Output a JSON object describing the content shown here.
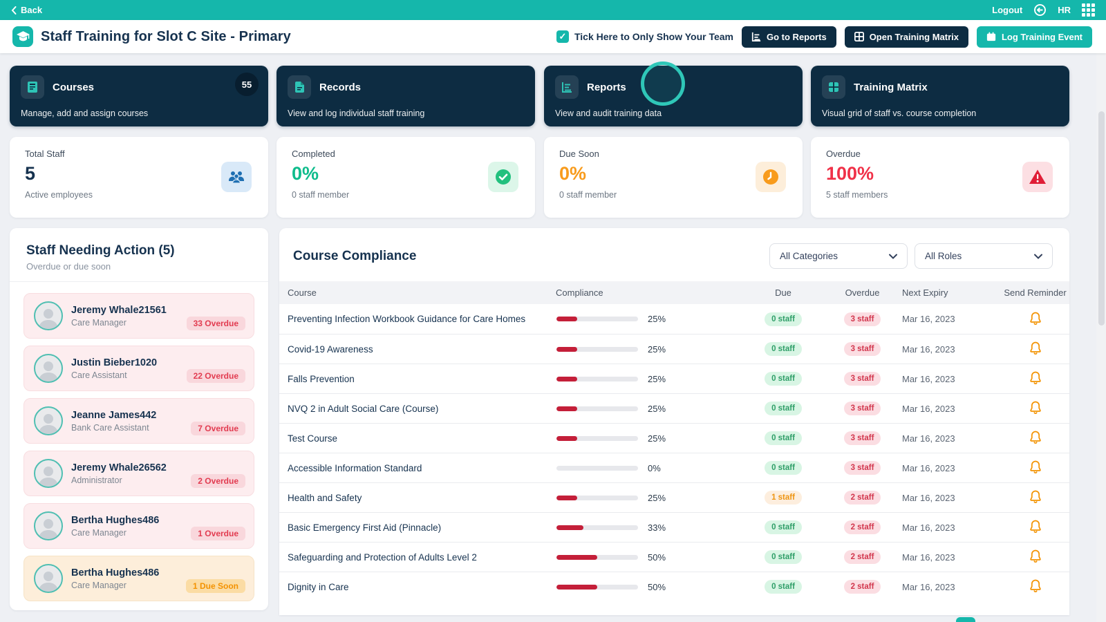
{
  "topbar": {
    "back_label": "Back",
    "logout_label": "Logout",
    "org_label": "HR"
  },
  "header": {
    "title": "Staff Training for Slot C Site - Primary",
    "team_filter_label": "Tick Here to Only Show Your Team",
    "checkbox_checked": "✓",
    "buttons": {
      "reports": "Go to Reports",
      "matrix": "Open Training Matrix",
      "log_event": "Log Training Event"
    }
  },
  "nav_cards": [
    {
      "title": "Courses",
      "description": "Manage, add and assign courses",
      "badge": "55",
      "icon": "book-icon"
    },
    {
      "title": "Records",
      "description": "View and log individual staff training",
      "icon": "file-icon"
    },
    {
      "title": "Reports",
      "description": "View and audit training data",
      "icon": "bar-chart-icon"
    },
    {
      "title": "Training Matrix",
      "description": "Visual grid of staff vs. course completion",
      "icon": "grid-icon"
    }
  ],
  "stat_cards": [
    {
      "label": "Total Staff",
      "value": "5",
      "subtext": "Active employees",
      "accent": "#16324f",
      "icon": "people-icon",
      "icon_bg": "#d9e9f8"
    },
    {
      "label": "Completed",
      "value": "0%",
      "subtext": "0 staff member",
      "accent": "#0ebc8c",
      "icon": "check-circle-icon",
      "icon_bg": "#dcf6e9"
    },
    {
      "label": "Due Soon",
      "value": "0%",
      "subtext": "0 staff member",
      "accent": "#f89b1c",
      "icon": "clock-icon",
      "icon_bg": "#fdeeda"
    },
    {
      "label": "Overdue",
      "value": "100%",
      "subtext": "5 staff members",
      "accent": "#f03148",
      "icon": "alert-triangle-icon",
      "icon_bg": "#fcdfe3"
    }
  ],
  "staff_panel": {
    "title": "Staff Needing Action (5)",
    "subtitle": "Overdue or due soon",
    "items": [
      {
        "name": "Jeremy Whale21561",
        "role": "Care Manager",
        "badge": "33 Overdue",
        "status": "overdue"
      },
      {
        "name": "Justin Bieber1020",
        "role": "Care Assistant",
        "badge": "22 Overdue",
        "status": "overdue"
      },
      {
        "name": "Jeanne James442",
        "role": "Bank Care Assistant",
        "badge": "7 Overdue",
        "status": "overdue"
      },
      {
        "name": "Jeremy Whale26562",
        "role": "Administrator",
        "badge": "2 Overdue",
        "status": "overdue"
      },
      {
        "name": "Bertha Hughes486",
        "role": "Care Manager",
        "badge": "1 Overdue",
        "status": "overdue"
      },
      {
        "name": "Bertha Hughes486",
        "role": "Care Manager",
        "badge": "1 Due Soon",
        "status": "due-soon"
      }
    ]
  },
  "compliance": {
    "title": "Course Compliance",
    "filters": [
      {
        "value": "All Categories"
      },
      {
        "value": "All Roles"
      }
    ],
    "columns": [
      "Course",
      "Compliance",
      "Due",
      "Overdue",
      "Next Expiry",
      "Send Reminder"
    ],
    "rows": [
      {
        "course": "Preventing Infection Workbook Guidance for Care Homes",
        "compliance_pct": 25,
        "due": "0 staff",
        "due_status": "ok",
        "overdue": "3 staff",
        "next_expiry": "Mar 16, 2023"
      },
      {
        "course": "Covid-19 Awareness",
        "compliance_pct": 25,
        "due": "0 staff",
        "due_status": "ok",
        "overdue": "3 staff",
        "next_expiry": "Mar 16, 2023"
      },
      {
        "course": "Falls Prevention",
        "compliance_pct": 25,
        "due": "0 staff",
        "due_status": "ok",
        "overdue": "3 staff",
        "next_expiry": "Mar 16, 2023"
      },
      {
        "course": "NVQ 2 in Adult Social Care (Course)",
        "compliance_pct": 25,
        "due": "0 staff",
        "due_status": "ok",
        "overdue": "3 staff",
        "next_expiry": "Mar 16, 2023"
      },
      {
        "course": "Test Course",
        "compliance_pct": 25,
        "due": "0 staff",
        "due_status": "ok",
        "overdue": "3 staff",
        "next_expiry": "Mar 16, 2023"
      },
      {
        "course": "Accessible Information Standard",
        "compliance_pct": 0,
        "due": "0 staff",
        "due_status": "ok",
        "overdue": "3 staff",
        "next_expiry": "Mar 16, 2023"
      },
      {
        "course": "Health and Safety",
        "compliance_pct": 25,
        "due": "1 staff",
        "due_status": "warn",
        "overdue": "2 staff",
        "next_expiry": "Mar 16, 2023"
      },
      {
        "course": "Basic Emergency First Aid (Pinnacle)",
        "compliance_pct": 33,
        "due": "0 staff",
        "due_status": "ok",
        "overdue": "2 staff",
        "next_expiry": "Mar 16, 2023"
      },
      {
        "course": "Safeguarding and Protection of Adults Level 2",
        "compliance_pct": 50,
        "due": "0 staff",
        "due_status": "ok",
        "overdue": "2 staff",
        "next_expiry": "Mar 16, 2023"
      },
      {
        "course": "Dignity in Care",
        "compliance_pct": 50,
        "due": "0 staff",
        "due_status": "ok",
        "overdue": "2 staff",
        "next_expiry": "Mar 16, 2023"
      }
    ]
  },
  "colors": {
    "teal": "#15b7ab",
    "navy_card": "#0d2c42",
    "title_navy": "#16324f",
    "green": "#0ebc8c",
    "orange": "#f89b1c",
    "red": "#f03148",
    "bar_fill": "#c41f39",
    "bell": "#f39200"
  }
}
